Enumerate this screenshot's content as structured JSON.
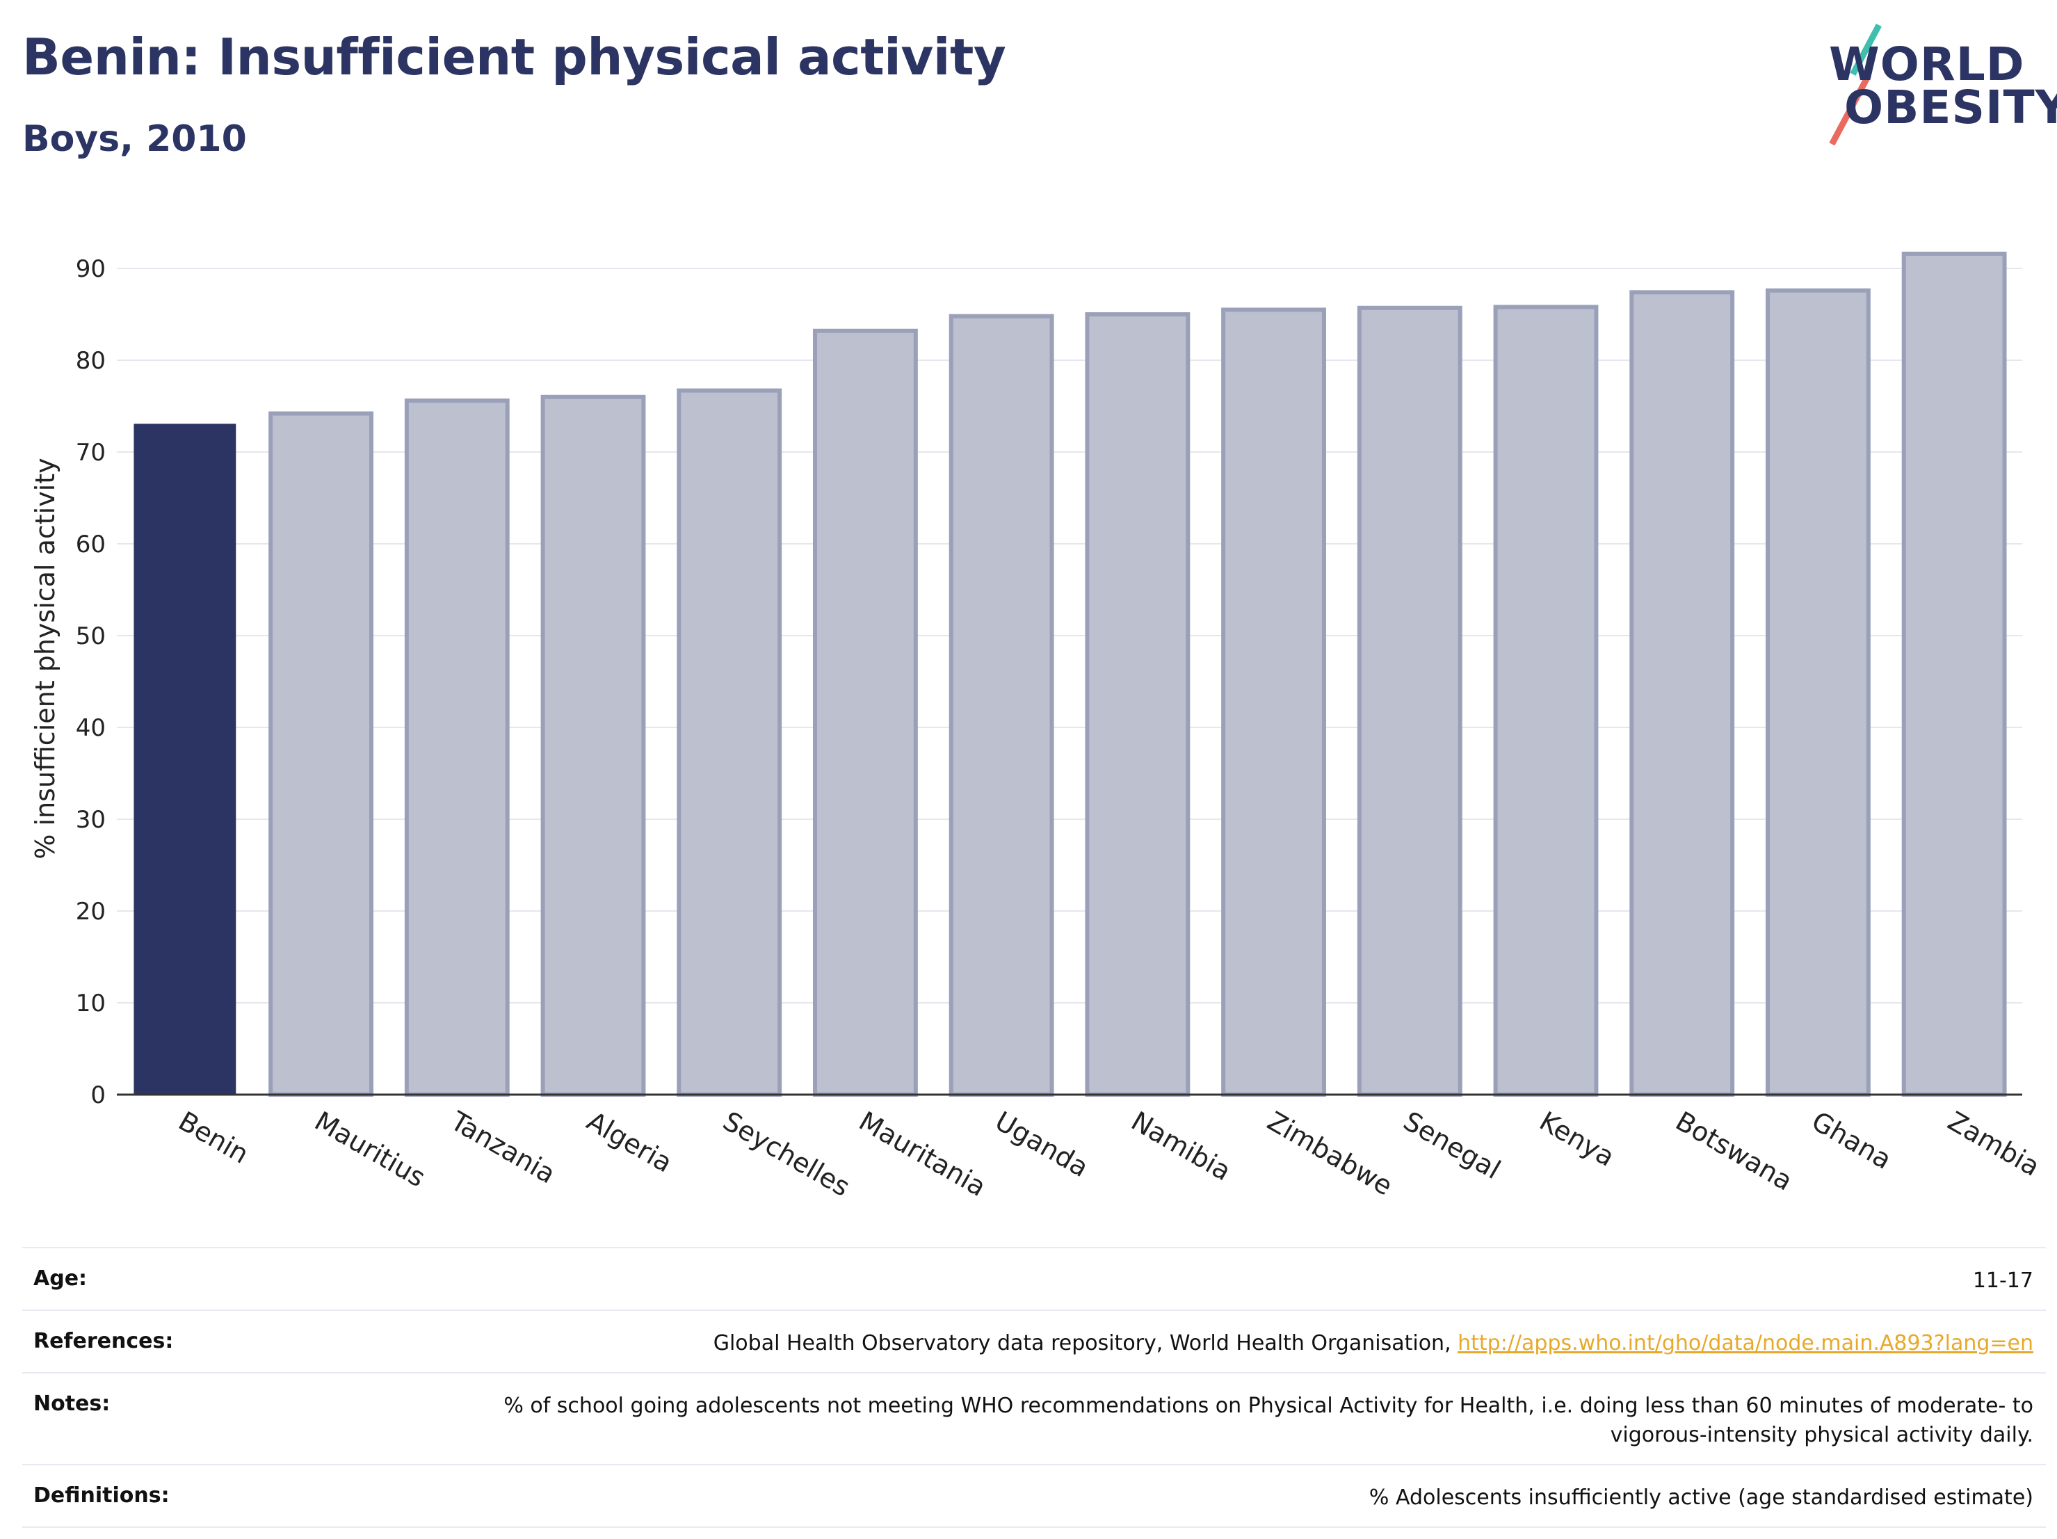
{
  "header": {
    "title": "Benin: Insufficient physical activity",
    "subtitle": "Boys, 2010"
  },
  "logo": {
    "line1": "WORLD",
    "line2": "OBESITY"
  },
  "colors": {
    "highlight": "#2b3462",
    "bar": "#bcc0cf",
    "bar_edge": "#9aa0b8"
  },
  "chart_data": {
    "type": "bar",
    "categories": [
      "Benin",
      "Mauritius",
      "Tanzania",
      "Algeria",
      "Seychelles",
      "Mauritania",
      "Uganda",
      "Namibia",
      "Zimbabwe",
      "Senegal",
      "Kenya",
      "Botswana",
      "Ghana",
      "Zambia"
    ],
    "values": [
      73.0,
      74.2,
      75.6,
      76.0,
      76.7,
      83.2,
      84.8,
      85.0,
      85.5,
      85.7,
      85.8,
      87.4,
      87.6,
      91.6
    ],
    "highlight": "Benin",
    "ylabel": "% insufficient physical activity",
    "xlabel": "",
    "ylim": [
      0,
      95
    ],
    "yticks": [
      0,
      10,
      20,
      30,
      40,
      50,
      60,
      70,
      80,
      90
    ],
    "grid": true
  },
  "meta": [
    {
      "label": "Age:",
      "value": "11-17"
    },
    {
      "label": "References:",
      "value": "Global Health Observatory data repository, World Health Organisation, ",
      "link": "http://apps.who.int/gho/data/node.main.A893?lang=en"
    },
    {
      "label": "Notes:",
      "value": "% of school going adolescents not meeting WHO recommendations on Physical Activity for Health, i.e. doing less than 60 minutes of moderate- to vigorous-intensity physical activity daily."
    },
    {
      "label": "Definitions:",
      "value": "% Adolescents insufficiently active (age standardised estimate)"
    }
  ]
}
